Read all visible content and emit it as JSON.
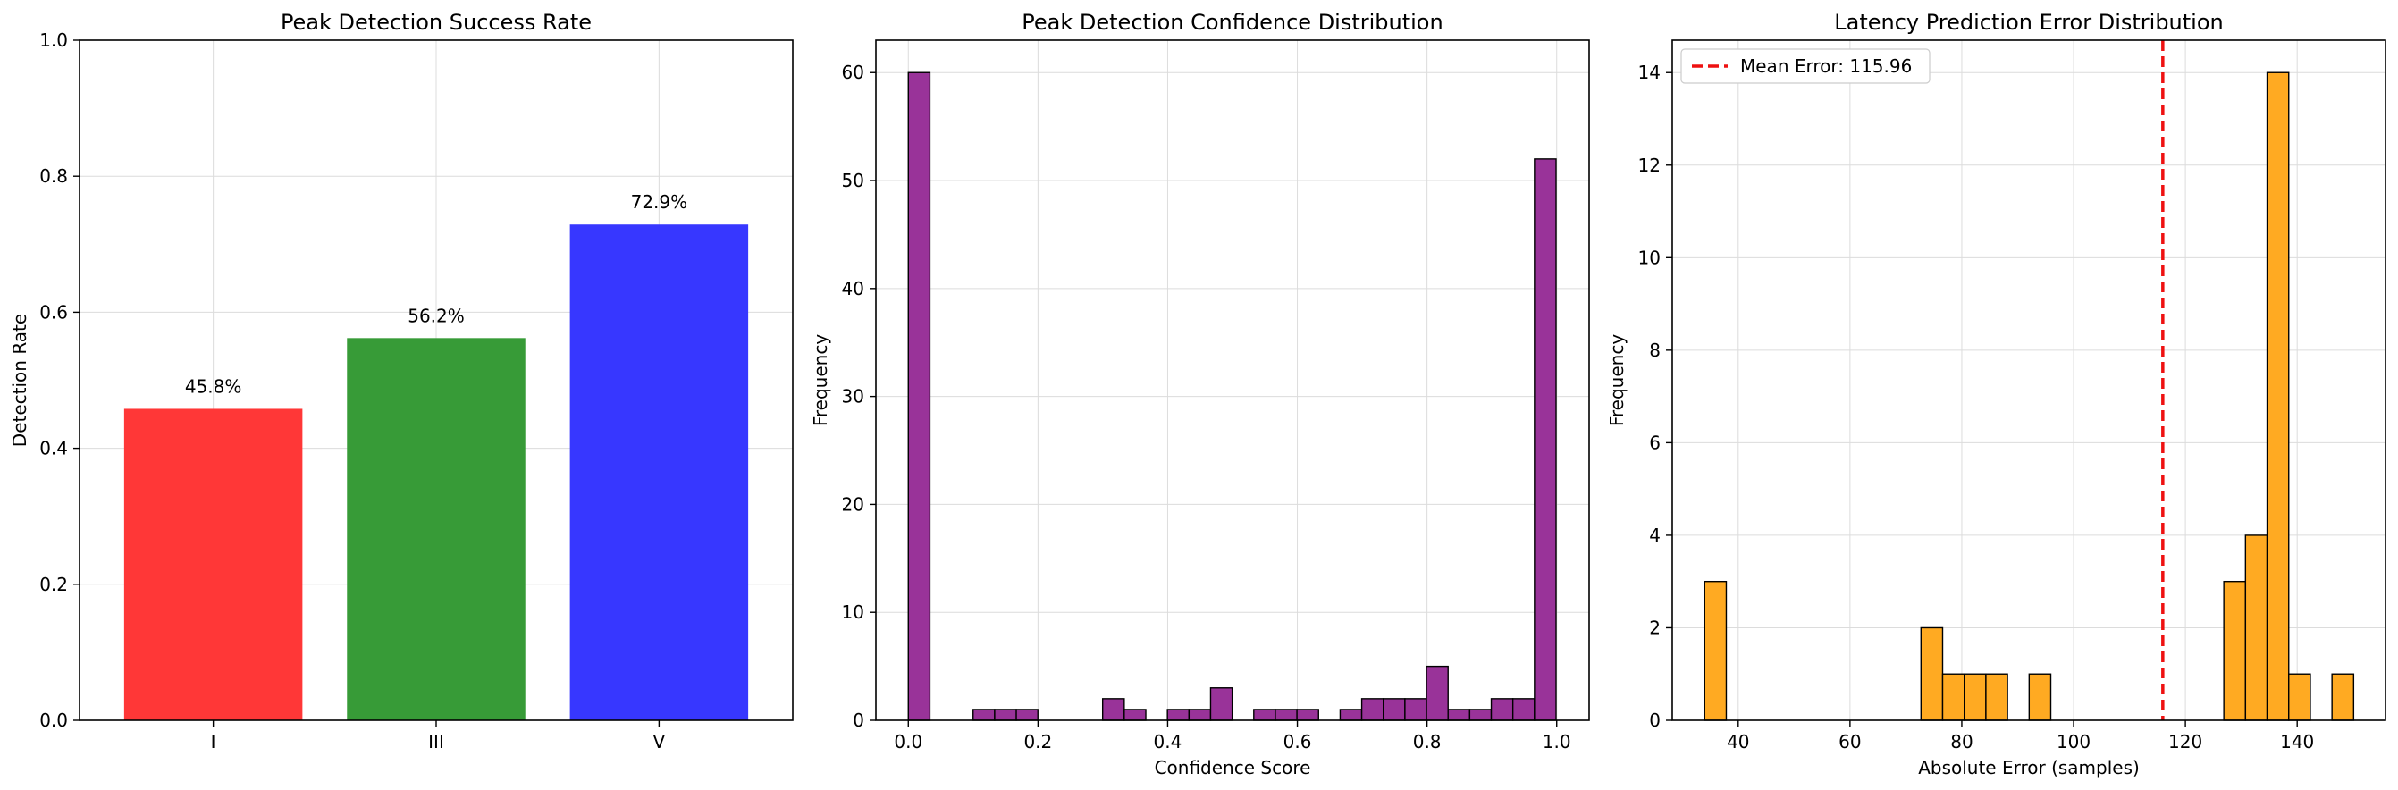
{
  "chart_data": [
    {
      "type": "bar",
      "title": "Peak Detection Success Rate",
      "xlabel": "",
      "ylabel": "Detection Rate",
      "categories": [
        "I",
        "III",
        "V"
      ],
      "values": [
        0.458,
        0.562,
        0.729
      ],
      "data_labels": [
        "45.8%",
        "56.2%",
        "72.9%"
      ],
      "colors": [
        "#ff3333",
        "#339933",
        "#3333ff"
      ],
      "ylim": [
        0,
        1.0
      ],
      "yticks": [
        0.0,
        0.2,
        0.4,
        0.6,
        0.8,
        1.0
      ],
      "ytick_labels": [
        "0.0",
        "0.2",
        "0.4",
        "0.6",
        "0.8",
        "1.0"
      ],
      "grid": true
    },
    {
      "type": "bar",
      "subtype": "histogram",
      "title": "Peak Detection Confidence Distribution",
      "xlabel": "Confidence Score",
      "ylabel": "Frequency",
      "bin_start": 0.0,
      "bin_width": 0.0333,
      "counts": [
        60,
        0,
        0,
        1,
        1,
        1,
        0,
        0,
        0,
        2,
        1,
        0,
        1,
        1,
        3,
        0,
        1,
        1,
        1,
        0,
        1,
        2,
        2,
        2,
        5,
        1,
        1,
        2,
        2,
        52
      ],
      "color": "#993399",
      "xlim": [
        -0.05,
        1.05
      ],
      "ylim": [
        0,
        63
      ],
      "xticks": [
        0.0,
        0.2,
        0.4,
        0.6,
        0.8,
        1.0
      ],
      "xtick_labels": [
        "0.0",
        "0.2",
        "0.4",
        "0.6",
        "0.8",
        "1.0"
      ],
      "yticks": [
        0,
        10,
        20,
        30,
        40,
        50,
        60
      ],
      "ytick_labels": [
        "0",
        "10",
        "20",
        "30",
        "40",
        "50",
        "60"
      ],
      "grid": true
    },
    {
      "type": "bar",
      "subtype": "histogram",
      "title": "Latency Prediction Error Distribution",
      "xlabel": "Absolute Error (samples)",
      "ylabel": "Frequency",
      "bin_start": 34.0,
      "bin_width": 3.87,
      "counts": [
        3,
        0,
        0,
        0,
        0,
        0,
        0,
        0,
        0,
        0,
        2,
        1,
        1,
        1,
        0,
        1,
        0,
        0,
        0,
        0,
        0,
        0,
        0,
        0,
        3,
        4,
        14,
        1,
        0,
        1
      ],
      "color": "#ffaa22",
      "mean_line": {
        "value": 115.96,
        "label": "Mean Error: 115.96",
        "color": "#ee1111"
      },
      "legend_position": "top-left",
      "xlim": [
        28.2,
        155.8
      ],
      "ylim": [
        0,
        14.7
      ],
      "xticks": [
        40,
        60,
        80,
        100,
        120,
        140
      ],
      "xtick_labels": [
        "40",
        "60",
        "80",
        "100",
        "120",
        "140"
      ],
      "yticks": [
        0,
        2,
        4,
        6,
        8,
        10,
        12,
        14
      ],
      "ytick_labels": [
        "0",
        "2",
        "4",
        "6",
        "8",
        "10",
        "12",
        "14"
      ],
      "grid": true
    }
  ]
}
